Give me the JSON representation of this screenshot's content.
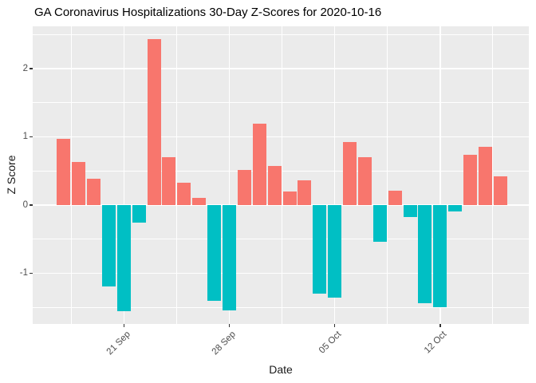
{
  "title": "GA Coronavirus Hospitalizations 30-Day Z-Scores for 2020-10-16",
  "colors": {
    "positive_bar": "#F8766D",
    "negative_bar": "#00BFC4",
    "panel_background": "#EBEBEB",
    "gridline": "#FFFFFF",
    "tick_text": "#4D4D4D",
    "title_text": "#000000"
  },
  "chart_data": {
    "type": "bar",
    "title": "GA Coronavirus Hospitalizations 30-Day Z-Scores for 2020-10-16",
    "xlabel": "Date",
    "ylabel": "Z Score",
    "x": [
      "2020-09-17",
      "2020-09-18",
      "2020-09-19",
      "2020-09-20",
      "2020-09-21",
      "2020-09-22",
      "2020-09-23",
      "2020-09-24",
      "2020-09-25",
      "2020-09-26",
      "2020-09-27",
      "2020-09-28",
      "2020-09-29",
      "2020-09-30",
      "2020-10-01",
      "2020-10-02",
      "2020-10-03",
      "2020-10-04",
      "2020-10-05",
      "2020-10-06",
      "2020-10-07",
      "2020-10-08",
      "2020-10-09",
      "2020-10-10",
      "2020-10-11",
      "2020-10-12",
      "2020-10-13",
      "2020-10-14",
      "2020-10-15",
      "2020-10-16"
    ],
    "values": [
      0.97,
      0.63,
      0.39,
      -1.19,
      -1.55,
      -0.26,
      2.43,
      0.7,
      0.33,
      0.11,
      -1.4,
      -1.54,
      0.52,
      1.19,
      0.58,
      0.2,
      0.36,
      -1.29,
      -1.35,
      0.92,
      0.7,
      -0.54,
      0.21,
      -0.17,
      -1.44,
      -1.49,
      -0.09,
      0.74,
      0.86,
      0.42
    ],
    "x_tick_labels": [
      "21 Sep",
      "28 Sep",
      "05 Oct",
      "12 Oct"
    ],
    "x_tick_indices": [
      4,
      11,
      18,
      25
    ],
    "y_tick_labels": [
      "2",
      "1",
      "0",
      "-1"
    ],
    "y_tick_values": [
      2,
      1,
      0,
      -1
    ],
    "ylim": [
      -1.74,
      2.62
    ],
    "grid": "white major gridlines at integers/weeks, minor at halves, on gray panel",
    "legend": "none",
    "bar_color_rule": "positive bars salmon, negative bars teal"
  }
}
